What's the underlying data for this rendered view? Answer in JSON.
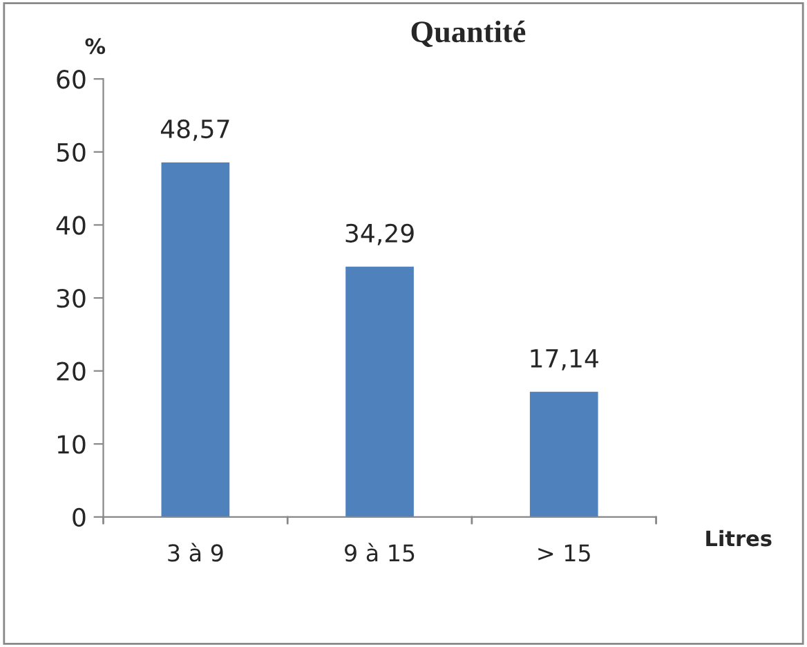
{
  "chart_data": {
    "type": "bar",
    "title": "Quantité",
    "ylabel": "%",
    "xlabel": "Litres",
    "categories": [
      "3 à 9",
      "9 à 15",
      "> 15"
    ],
    "values": [
      48.57,
      34.29,
      17.14
    ],
    "value_labels": [
      "48,57",
      "34,29",
      "17,14"
    ],
    "color": "#4f81bd",
    "ylim": [
      0,
      60
    ],
    "yticks": [
      0,
      10,
      20,
      30,
      40,
      50,
      60
    ],
    "grid": false,
    "legend": false
  }
}
